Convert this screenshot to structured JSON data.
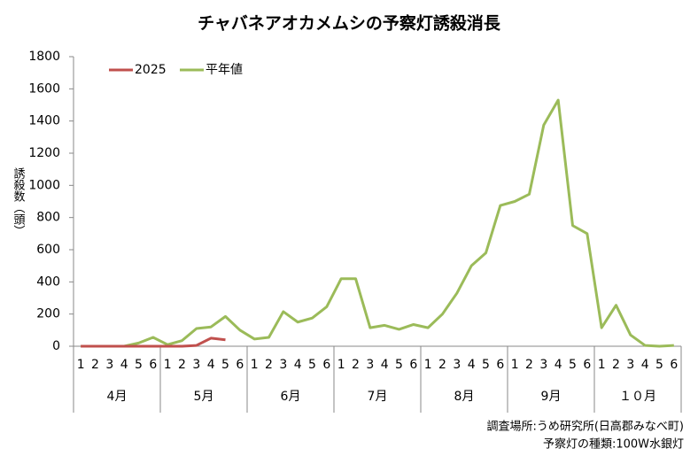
{
  "chart_data": {
    "type": "line",
    "title": "チャバネアオカメムシの予察灯誘殺消長",
    "y_label": "誘殺数（頭）",
    "categories": [
      "1",
      "2",
      "3",
      "4",
      "5",
      "6",
      "1",
      "2",
      "3",
      "4",
      "5",
      "6",
      "1",
      "2",
      "3",
      "4",
      "5",
      "6",
      "1",
      "2",
      "3",
      "4",
      "5",
      "6",
      "1",
      "2",
      "3",
      "4",
      "5",
      "6",
      "1",
      "2",
      "3",
      "4",
      "5",
      "6",
      "1",
      "2",
      "3",
      "4",
      "5",
      "6"
    ],
    "groups": [
      "4月",
      "5月",
      "6月",
      "7月",
      "8月",
      "9月",
      "１０月"
    ],
    "series": [
      {
        "name": "2025",
        "color": "#c0504d",
        "values": [
          0,
          0,
          0,
          0,
          0,
          0,
          0,
          0,
          5,
          50,
          40,
          null,
          null,
          null,
          null,
          null,
          null,
          null,
          null,
          null,
          null,
          null,
          null,
          null,
          null,
          null,
          null,
          null,
          null,
          null,
          null,
          null,
          null,
          null,
          null,
          null,
          null,
          null,
          null,
          null,
          null,
          null
        ]
      },
      {
        "name": "平年値",
        "color": "#9bbb59",
        "values": [
          0,
          0,
          0,
          0,
          20,
          55,
          10,
          35,
          110,
          120,
          185,
          100,
          45,
          55,
          215,
          150,
          175,
          245,
          420,
          420,
          115,
          130,
          105,
          135,
          115,
          200,
          330,
          500,
          580,
          875,
          900,
          945,
          1375,
          1530,
          750,
          700,
          115,
          255,
          70,
          5,
          0,
          5
        ]
      }
    ],
    "ylim": [
      0,
      1800
    ],
    "yticks": [
      0,
      200,
      400,
      600,
      800,
      1000,
      1200,
      1400,
      1600,
      1800
    ],
    "notes": [
      "調査場所:うめ研究所(日高郡みなべ町)",
      "予察灯の種類:100W水銀灯"
    ]
  }
}
